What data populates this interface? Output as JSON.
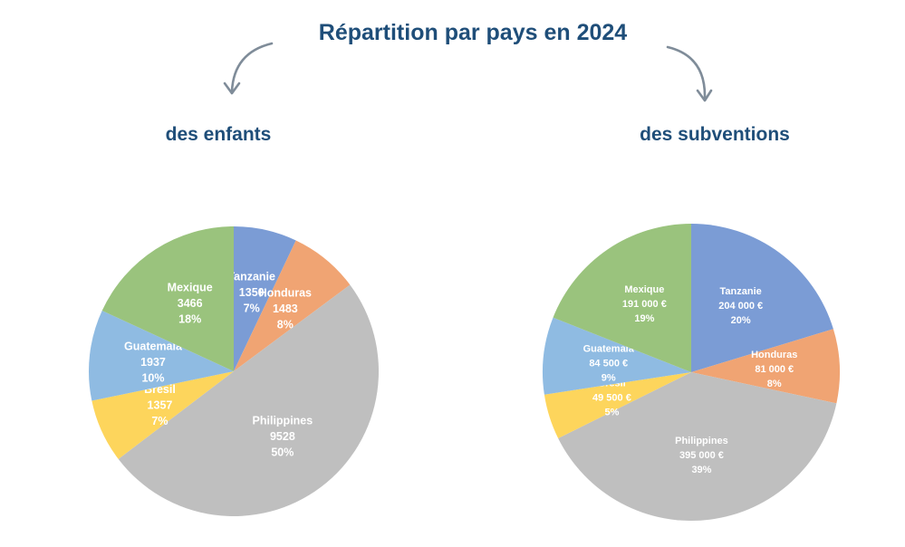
{
  "title": "Répartition par pays en 2024",
  "subtitles": {
    "left": "des enfants",
    "right": "des subventions"
  },
  "colors": {
    "title": "#1f4e79",
    "arrow": "#7f8c99",
    "Tanzanie": "#7b9cd5",
    "Honduras": "#f0a473",
    "Philippines": "#bfbfbf",
    "Brésil": "#fdd55c",
    "Guatemala": "#8fbbe2",
    "Mexique": "#9ac37d"
  },
  "chart_data": [
    {
      "type": "pie",
      "title": "des enfants",
      "categories": [
        "Tanzanie",
        "Honduras",
        "Philippines",
        "Brésil",
        "Guatemala",
        "Mexique"
      ],
      "values": [
        1350,
        1483,
        9528,
        1357,
        1937,
        3466
      ],
      "value_labels": [
        "1350",
        "1483",
        "9528",
        "1357",
        "1937",
        "3466"
      ],
      "percent_labels": [
        "7%",
        "8%",
        "50%",
        "7%",
        "10%",
        "18%"
      ]
    },
    {
      "type": "pie",
      "title": "des subventions",
      "categories": [
        "Tanzanie",
        "Honduras",
        "Philippines",
        "Brésil",
        "Guatemala",
        "Mexique"
      ],
      "values": [
        204000,
        81000,
        395000,
        49500,
        84500,
        191000
      ],
      "value_labels": [
        "204 000 €",
        "81 000 €",
        "395 000 €",
        "49 500 €",
        "84 500 €",
        "191 000 €"
      ],
      "percent_labels": [
        "20%",
        "8%",
        "39%",
        "5%",
        "9%",
        "19%"
      ]
    }
  ]
}
